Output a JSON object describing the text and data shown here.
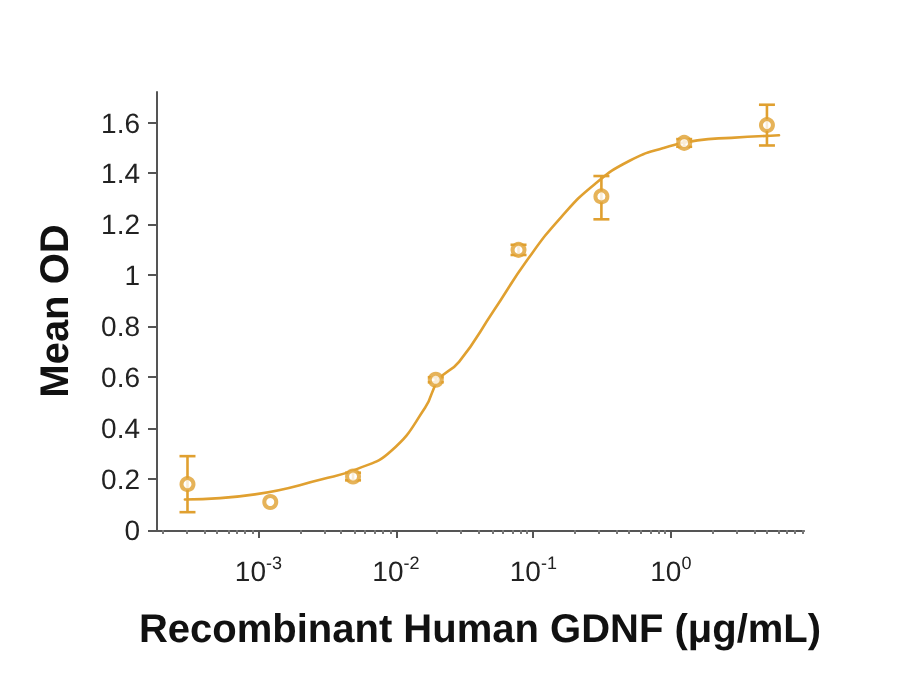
{
  "chart_data": {
    "type": "scatter",
    "xlabel": "Recombinant Human GDNF (μg/mL)",
    "ylabel": "Mean OD",
    "log": "x",
    "xlim": [
      0.00018,
      9.3
    ],
    "xticks": [
      {
        "value": 0.001,
        "label": "10$^{-3}$"
      },
      {
        "value": 0.01,
        "label": "10$^{-2}$"
      },
      {
        "value": 0.1,
        "label": "10$^{-1}$"
      },
      {
        "value": 1,
        "label": "10$^{0}$"
      }
    ],
    "ylim": [
      0,
      1.72
    ],
    "yticks": [
      0,
      0.2,
      0.4,
      0.6,
      0.8,
      1,
      1.2,
      1.4,
      1.6
    ],
    "grid": false,
    "series": [
      {
        "color": "#e0a030",
        "marker": "circle",
        "x": [
          0.000305,
          0.00122,
          0.00488,
          0.0195,
          0.078,
          0.3125,
          1.25,
          5
        ],
        "values": [
          0.18,
          0.11,
          0.21,
          0.59,
          1.1,
          1.31,
          1.52,
          1.59
        ],
        "errors": [
          [
            0.07,
            0.29
          ],
          null,
          0.015,
          0.01,
          0.02,
          [
            1.22,
            1.39
          ],
          0.015,
          [
            1.51,
            1.67
          ]
        ]
      },
      {
        "type": "line",
        "color": "#e0a030",
        "marker": "none",
        "line_style": "solid",
        "x": [
          0.000292,
          0.000944,
          0.00295,
          0.00525,
          0.00923,
          0.0163,
          0.0205,
          0.0288,
          0.0513,
          0.0902,
          0.16,
          0.282,
          0.501,
          0.883,
          1.56,
          2.75,
          6.12
        ],
        "values": [
          0.12,
          0.14,
          0.2,
          0.24,
          0.31,
          0.48,
          0.59,
          0.66,
          0.86,
          1.06,
          1.23,
          1.36,
          1.45,
          1.5,
          1.53,
          1.54,
          1.55
        ]
      }
    ]
  }
}
